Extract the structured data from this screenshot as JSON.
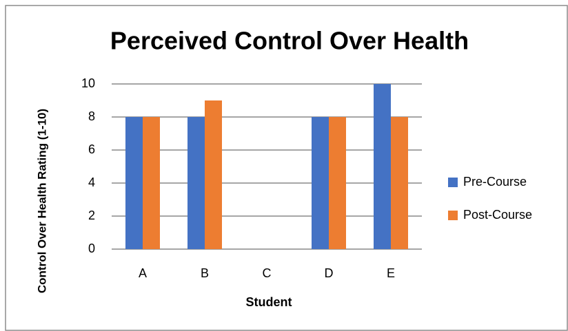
{
  "chart_data": {
    "type": "bar",
    "title": "Perceived Control Over Health",
    "x_label": "Student",
    "y_label": "Control Over Health Rating (1-10)",
    "categories": [
      "A",
      "B",
      "C",
      "D",
      "E"
    ],
    "series": [
      {
        "name": "Pre-Course",
        "color": "#4472c4",
        "values": [
          8,
          8,
          0,
          8,
          10
        ]
      },
      {
        "name": "Post-Course",
        "color": "#ed7d31",
        "values": [
          8,
          9,
          0,
          8,
          8
        ]
      }
    ],
    "ylim": [
      0,
      10
    ],
    "yticks": [
      0,
      2,
      4,
      6,
      8,
      10
    ],
    "grid": true,
    "legend": "right"
  }
}
